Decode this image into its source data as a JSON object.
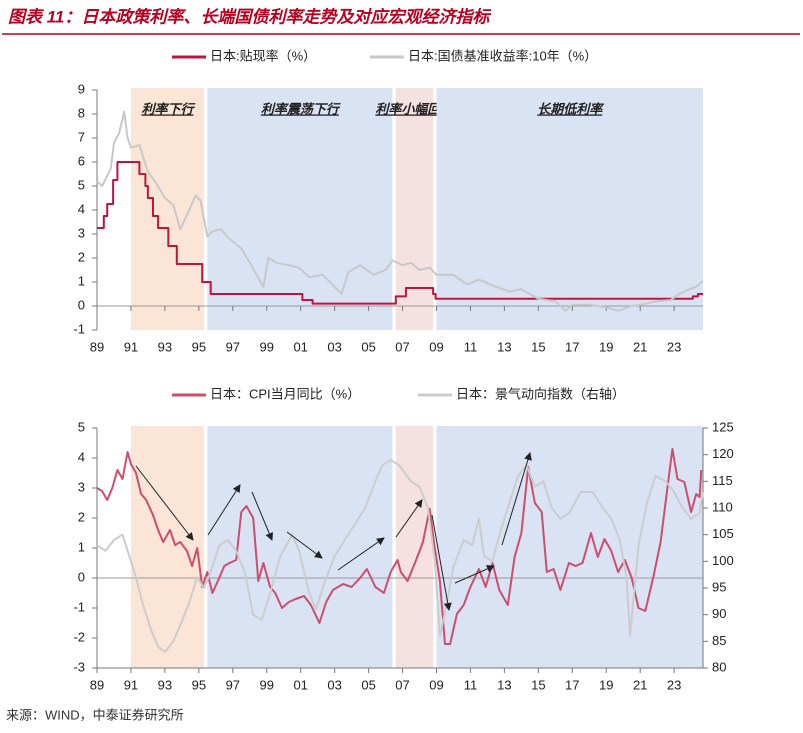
{
  "title": "图表 11：日本政策利率、长端国债利率走势及对应宏观经济指标",
  "source": "来源：WIND，中泰证券研究所",
  "chart_data": [
    {
      "type": "line",
      "xlim": [
        1989,
        2024.7
      ],
      "xticks": [
        {
          "value": 1989,
          "label": "89"
        },
        {
          "value": 1991,
          "label": "91"
        },
        {
          "value": 1993,
          "label": "93"
        },
        {
          "value": 1995,
          "label": "95"
        },
        {
          "value": 1997,
          "label": "97"
        },
        {
          "value": 1999,
          "label": "99"
        },
        {
          "value": 2001,
          "label": "01"
        },
        {
          "value": 2003,
          "label": "03"
        },
        {
          "value": 2005,
          "label": "05"
        },
        {
          "value": 2007,
          "label": "07"
        },
        {
          "value": 2009,
          "label": "09"
        },
        {
          "value": 2011,
          "label": "11"
        },
        {
          "value": 2013,
          "label": "13"
        },
        {
          "value": 2015,
          "label": "15"
        },
        {
          "value": 2017,
          "label": "17"
        },
        {
          "value": 2019,
          "label": "19"
        },
        {
          "value": 2021,
          "label": "21"
        },
        {
          "value": 2023,
          "label": "23"
        }
      ],
      "ylim": [
        -1,
        9
      ],
      "yticks": [
        -1,
        0,
        1,
        2,
        3,
        4,
        5,
        6,
        7,
        8,
        9
      ],
      "regions": [
        {
          "label": "利率下行",
          "start": 1991.0,
          "end": 1995.3,
          "color": "#fbe5d6"
        },
        {
          "label": "利率震荡下行",
          "start": 1995.5,
          "end": 2006.4,
          "color": "#dae3f3"
        },
        {
          "label": "利率小幅回升",
          "start": 2006.6,
          "end": 2008.8,
          "color": "#f6e1e1"
        },
        {
          "label": "长期低利率",
          "start": 2009.0,
          "end": 2024.7,
          "color": "#dae3f3"
        }
      ],
      "series": [
        {
          "name": "日本:贴现率（%）",
          "color": "#c0143c",
          "x": [
            1989.0,
            1989.4,
            1989.4,
            1989.6,
            1989.6,
            1989.95,
            1989.95,
            1990.2,
            1990.2,
            1990.6,
            1990.6,
            1991.5,
            1991.5,
            1991.85,
            1991.85,
            1992.0,
            1992.0,
            1992.3,
            1992.3,
            1992.6,
            1992.6,
            1993.2,
            1993.2,
            1993.7,
            1993.7,
            1995.2,
            1995.2,
            1995.7,
            1995.7,
            2001.1,
            2001.1,
            2001.7,
            2001.7,
            2006.6,
            2006.6,
            2007.2,
            2007.2,
            2008.8,
            2008.8,
            2008.95,
            2008.95,
            2024.1,
            2024.1,
            2024.4,
            2024.4,
            2024.7
          ],
          "values": [
            3.25,
            3.25,
            3.75,
            3.75,
            4.25,
            4.25,
            5.25,
            5.25,
            6.0,
            6.0,
            6.0,
            6.0,
            5.5,
            5.5,
            5.0,
            5.0,
            4.5,
            4.5,
            3.75,
            3.75,
            3.25,
            3.25,
            2.5,
            2.5,
            1.75,
            1.75,
            1.0,
            1.0,
            0.5,
            0.5,
            0.25,
            0.25,
            0.1,
            0.1,
            0.4,
            0.4,
            0.75,
            0.75,
            0.5,
            0.5,
            0.3,
            0.3,
            0.4,
            0.4,
            0.5,
            0.5
          ]
        },
        {
          "name": "日本:国债基准收益率:10年（%）",
          "color": "#c8c8c8",
          "x": [
            1989.0,
            1989.3,
            1989.8,
            1990.0,
            1990.3,
            1990.6,
            1990.8,
            1991.0,
            1991.5,
            1992.0,
            1992.5,
            1993.0,
            1993.5,
            1993.9,
            1994.3,
            1994.8,
            1995.1,
            1995.5,
            1995.8,
            1996.3,
            1996.8,
            1997.5,
            1998.0,
            1998.8,
            1999.1,
            1999.6,
            2000.3,
            2000.9,
            2001.5,
            2002.3,
            2003.4,
            2003.8,
            2004.5,
            2005.3,
            2006.0,
            2006.4,
            2007.0,
            2007.5,
            2008.0,
            2008.6,
            2009.0,
            2010.0,
            2010.8,
            2011.5,
            2012.5,
            2013.3,
            2014.0,
            2015.0,
            2016.0,
            2016.6,
            2017.0,
            2018.0,
            2019.0,
            2019.7,
            2020.5,
            2021.0,
            2022.0,
            2022.8,
            2023.3,
            2023.9,
            2024.3,
            2024.7
          ],
          "values": [
            5.2,
            5.0,
            5.7,
            6.8,
            7.2,
            8.1,
            7.0,
            6.6,
            6.7,
            5.6,
            5.1,
            4.5,
            4.2,
            3.2,
            3.8,
            4.6,
            4.4,
            2.9,
            3.1,
            3.2,
            2.8,
            2.4,
            1.8,
            0.8,
            2.0,
            1.8,
            1.7,
            1.6,
            1.2,
            1.3,
            0.5,
            1.4,
            1.7,
            1.3,
            1.5,
            1.9,
            1.7,
            1.8,
            1.5,
            1.6,
            1.3,
            1.3,
            0.9,
            1.1,
            0.8,
            0.6,
            0.7,
            0.3,
            0.2,
            -0.2,
            0.05,
            0.05,
            -0.05,
            -0.2,
            0.0,
            0.05,
            0.2,
            0.25,
            0.5,
            0.7,
            0.8,
            1.05
          ]
        }
      ]
    },
    {
      "type": "line",
      "xlim": [
        1989,
        2024.7
      ],
      "xticks": [
        {
          "value": 1989,
          "label": "89"
        },
        {
          "value": 1991,
          "label": "91"
        },
        {
          "value": 1993,
          "label": "93"
        },
        {
          "value": 1995,
          "label": "95"
        },
        {
          "value": 1997,
          "label": "97"
        },
        {
          "value": 1999,
          "label": "99"
        },
        {
          "value": 2001,
          "label": "01"
        },
        {
          "value": 2003,
          "label": "03"
        },
        {
          "value": 2005,
          "label": "05"
        },
        {
          "value": 2007,
          "label": "07"
        },
        {
          "value": 2009,
          "label": "09"
        },
        {
          "value": 2011,
          "label": "11"
        },
        {
          "value": 2013,
          "label": "13"
        },
        {
          "value": 2015,
          "label": "15"
        },
        {
          "value": 2017,
          "label": "17"
        },
        {
          "value": 2019,
          "label": "19"
        },
        {
          "value": 2021,
          "label": "21"
        },
        {
          "value": 2023,
          "label": "23"
        }
      ],
      "ylim": [
        -3,
        5
      ],
      "yticks": [
        -3,
        -2,
        -1,
        0,
        1,
        2,
        3,
        4,
        5
      ],
      "y2lim": [
        80,
        125
      ],
      "y2ticks": [
        80,
        85,
        90,
        95,
        100,
        105,
        110,
        115,
        120,
        125
      ],
      "regions": [
        {
          "start": 1991.0,
          "end": 1995.3,
          "color": "#fbe5d6"
        },
        {
          "start": 1995.5,
          "end": 2006.4,
          "color": "#dae3f3"
        },
        {
          "start": 2006.6,
          "end": 2008.8,
          "color": "#f6e1e1"
        },
        {
          "start": 2009.0,
          "end": 2024.7,
          "color": "#dae3f3"
        }
      ],
      "series": [
        {
          "name": "日本：CPI当月同比（%）",
          "color": "#cc4e6e",
          "x": [
            1989.0,
            1989.3,
            1989.6,
            1989.9,
            1990.2,
            1990.5,
            1990.8,
            1991.0,
            1991.3,
            1991.6,
            1991.9,
            1992.3,
            1992.6,
            1992.9,
            1993.3,
            1993.6,
            1993.9,
            1994.3,
            1994.6,
            1994.9,
            1995.2,
            1995.5,
            1995.8,
            1996.2,
            1996.5,
            1996.8,
            1997.2,
            1997.5,
            1997.8,
            1998.2,
            1998.5,
            1998.8,
            1999.2,
            1999.5,
            1999.9,
            2000.3,
            2000.7,
            2001.2,
            2001.6,
            2002.1,
            2002.5,
            2002.9,
            2003.5,
            2004.0,
            2004.5,
            2004.9,
            2005.4,
            2005.9,
            2006.3,
            2006.7,
            2006.9,
            2007.3,
            2007.8,
            2008.2,
            2008.6,
            2008.9,
            2009.2,
            2009.5,
            2009.8,
            2010.2,
            2010.6,
            2011.0,
            2011.5,
            2011.9,
            2012.3,
            2012.7,
            2013.2,
            2013.6,
            2014.0,
            2014.4,
            2014.8,
            2015.2,
            2015.5,
            2015.9,
            2016.3,
            2016.8,
            2017.2,
            2017.6,
            2018.1,
            2018.5,
            2018.9,
            2019.3,
            2019.7,
            2020.1,
            2020.5,
            2020.9,
            2021.3,
            2021.8,
            2022.2,
            2022.6,
            2022.9,
            2023.2,
            2023.6,
            2024.0,
            2024.3,
            2024.5,
            2024.6
          ],
          "values": [
            3.0,
            2.9,
            2.6,
            3.0,
            3.6,
            3.3,
            4.2,
            3.8,
            3.5,
            2.8,
            2.6,
            2.1,
            1.6,
            1.2,
            1.6,
            1.1,
            1.2,
            0.9,
            0.4,
            1.0,
            -0.3,
            0.2,
            -0.5,
            0.0,
            0.4,
            0.5,
            0.6,
            2.2,
            2.4,
            2.0,
            -0.1,
            0.5,
            -0.3,
            -0.5,
            -1.0,
            -0.8,
            -0.7,
            -0.6,
            -0.9,
            -1.5,
            -0.8,
            -0.4,
            -0.2,
            -0.3,
            0.0,
            0.3,
            -0.3,
            -0.5,
            0.2,
            0.6,
            0.2,
            -0.1,
            0.6,
            1.2,
            2.3,
            1.0,
            -0.1,
            -2.2,
            -2.2,
            -1.2,
            -0.9,
            -0.3,
            0.3,
            -0.3,
            0.5,
            -0.4,
            -0.9,
            0.7,
            1.5,
            3.7,
            2.5,
            2.2,
            0.2,
            0.3,
            -0.4,
            0.5,
            0.4,
            0.5,
            1.5,
            0.7,
            1.3,
            0.9,
            0.2,
            0.6,
            0.0,
            -1.0,
            -1.1,
            0.1,
            1.2,
            3.0,
            4.3,
            3.3,
            3.2,
            2.2,
            2.8,
            2.7,
            3.6
          ]
        },
        {
          "name": "日本：景气动向指数（右轴）",
          "color": "#cccccc",
          "axis": "y2",
          "x": [
            1989.0,
            1989.5,
            1990.0,
            1990.5,
            1990.9,
            1991.3,
            1991.7,
            1992.2,
            1992.6,
            1993.0,
            1993.5,
            1993.9,
            1994.4,
            1994.9,
            1995.3,
            1995.7,
            1996.2,
            1996.7,
            1997.2,
            1997.7,
            1998.2,
            1998.7,
            1999.2,
            1999.8,
            2000.5,
            2000.9,
            2001.5,
            2001.9,
            2002.4,
            2003.0,
            2003.6,
            2004.2,
            2004.8,
            2005.4,
            2005.8,
            2006.3,
            2006.8,
            2007.5,
            2008.0,
            2008.5,
            2008.9,
            2009.2,
            2009.6,
            2010.0,
            2010.6,
            2011.1,
            2011.5,
            2011.8,
            2012.3,
            2012.8,
            2013.3,
            2013.8,
            2014.3,
            2014.8,
            2015.3,
            2015.8,
            2016.3,
            2016.8,
            2017.5,
            2018.2,
            2018.8,
            2019.3,
            2019.8,
            2020.2,
            2020.4,
            2020.9,
            2021.4,
            2021.9,
            2022.5,
            2023.0,
            2023.5,
            2024.0,
            2024.5,
            2024.7
          ],
          "values": [
            103,
            102,
            104,
            105,
            101,
            97,
            92,
            87,
            84,
            83,
            85,
            88,
            92,
            97,
            95,
            98,
            103,
            104,
            102,
            98,
            90,
            89,
            94,
            101,
            105,
            102,
            94,
            91,
            96,
            101,
            104,
            107,
            110,
            115,
            118,
            119,
            118,
            115,
            114,
            110,
            100,
            86,
            92,
            99,
            104,
            103,
            108,
            101,
            100,
            106,
            111,
            116,
            118,
            114,
            115,
            110,
            108,
            109,
            113,
            113,
            110,
            108,
            104,
            97,
            86,
            103,
            111,
            116,
            115,
            113,
            110,
            108,
            109,
            113
          ]
        }
      ]
    }
  ]
}
